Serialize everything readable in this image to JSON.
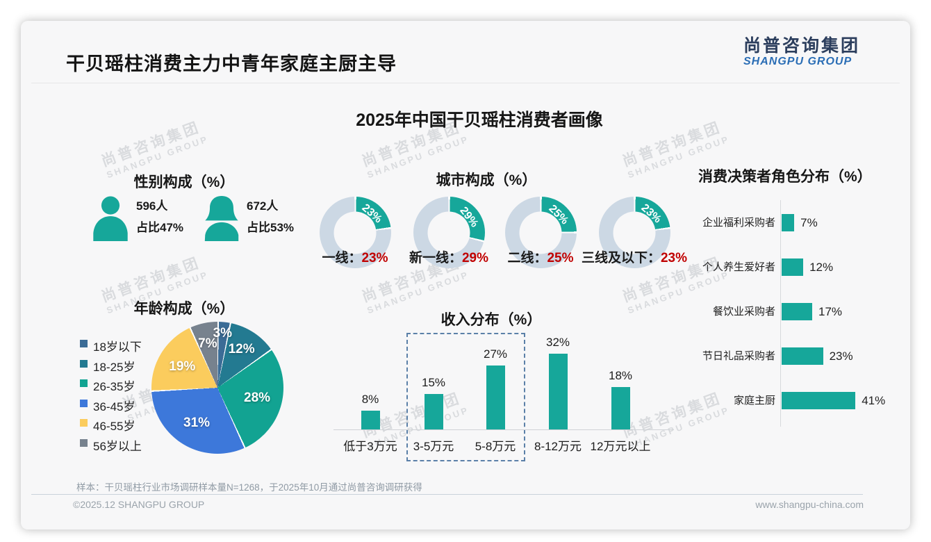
{
  "header": {
    "title": "干贝瑶柱消费主力中青年家庭主厨主导"
  },
  "logo": {
    "cn": "尚普咨询集团",
    "en": "SHANGPU GROUP"
  },
  "main_title": "2025年中国干贝瑶柱消费者画像",
  "watermark": {
    "cn": "尚普咨询集团",
    "en": "SHANGPU GROUP"
  },
  "colors": {
    "teal": "#16a79a",
    "donut_base": "#ccd8e4",
    "value_red": "#c00000",
    "logo_navy": "#2c3e5d",
    "logo_blue": "#2a6db5",
    "dashed_box": "#5b80a8",
    "pie": [
      "#3b6c96",
      "#237a91",
      "#12a392",
      "#3d78da",
      "#fbcc5d",
      "#77828e"
    ]
  },
  "gender": {
    "title": "性别构成（%）",
    "male": {
      "count": "596人",
      "share": "占比47%"
    },
    "female": {
      "count": "672人",
      "share": "占比53%"
    }
  },
  "city": {
    "title": "城市构成（%）",
    "items": [
      {
        "label": "一线：",
        "text": "23%",
        "pct": 23
      },
      {
        "label": "新一线：",
        "text": "29%",
        "pct": 29
      },
      {
        "label": "二线：",
        "text": "25%",
        "pct": 25
      },
      {
        "label": "三线及以下：",
        "text": "23%",
        "pct": 23
      }
    ]
  },
  "decision": {
    "title": "消费决策者角色分布（%）",
    "rows": [
      {
        "label": "企业福利采购者",
        "pct": 7,
        "text": "7%"
      },
      {
        "label": "个人养生爱好者",
        "pct": 12,
        "text": "12%"
      },
      {
        "label": "餐饮业采购者",
        "pct": 17,
        "text": "17%"
      },
      {
        "label": "节日礼品采购者",
        "pct": 23,
        "text": "23%"
      },
      {
        "label": "家庭主厨",
        "pct": 41,
        "text": "41%"
      }
    ]
  },
  "age": {
    "title": "年龄构成（%）",
    "slices": [
      {
        "label": "18岁以下",
        "pct": 3,
        "text": "3%",
        "color": "#3b6c96"
      },
      {
        "label": "18-25岁",
        "pct": 12,
        "text": "12%",
        "color": "#237a91"
      },
      {
        "label": "26-35岁",
        "pct": 28,
        "text": "28%",
        "color": "#12a392"
      },
      {
        "label": "36-45岁",
        "pct": 31,
        "text": "31%",
        "color": "#3d78da"
      },
      {
        "label": "46-55岁",
        "pct": 19,
        "text": "19%",
        "color": "#fbcc5d"
      },
      {
        "label": "56岁以上",
        "pct": 7,
        "text": "7%",
        "color": "#77828e"
      }
    ]
  },
  "income": {
    "title": "收入分布（%）",
    "bars": [
      {
        "label": "低于3万元",
        "pct": 8,
        "text": "8%"
      },
      {
        "label": "3-5万元",
        "pct": 15,
        "text": "15%"
      },
      {
        "label": "5-8万元",
        "pct": 27,
        "text": "27%"
      },
      {
        "label": "8-12万元",
        "pct": 32,
        "text": "32%"
      },
      {
        "label": "12万元以上",
        "pct": 18,
        "text": "18%"
      }
    ]
  },
  "footer": {
    "note": "样本：干贝瑶柱行业市场调研样本量N=1268，于2025年10月通过尚普咨询调研获得",
    "copyright": "©2025.12 SHANGPU GROUP",
    "website": "www.shangpu-china.com"
  },
  "chart_data": [
    {
      "type": "table",
      "title": "性别构成（%）",
      "categories": [
        "男",
        "女"
      ],
      "series": [
        {
          "name": "人数",
          "values": [
            596,
            672
          ]
        },
        {
          "name": "占比%",
          "values": [
            47,
            53
          ]
        }
      ]
    },
    {
      "type": "pie",
      "subtype": "donut-set",
      "title": "城市构成（%）",
      "categories": [
        "一线",
        "新一线",
        "二线",
        "三线及以下"
      ],
      "values": [
        23,
        29,
        25,
        23
      ]
    },
    {
      "type": "bar",
      "orientation": "horizontal",
      "title": "消费决策者角色分布（%）",
      "categories": [
        "企业福利采购者",
        "个人养生爱好者",
        "餐饮业采购者",
        "节日礼品采购者",
        "家庭主厨"
      ],
      "values": [
        7,
        12,
        17,
        23,
        41
      ],
      "xlim": [
        0,
        45
      ],
      "grid": false
    },
    {
      "type": "pie",
      "title": "年龄构成（%）",
      "categories": [
        "18岁以下",
        "18-25岁",
        "26-35岁",
        "36-45岁",
        "46-55岁",
        "56岁以上"
      ],
      "values": [
        3,
        12,
        28,
        31,
        19,
        7
      ],
      "legend_position": "left",
      "start_angle_deg": 0,
      "direction": "clockwise"
    },
    {
      "type": "bar",
      "title": "收入分布（%）",
      "categories": [
        "低于3万元",
        "3-5万元",
        "5-8万元",
        "8-12万元",
        "12万元以上"
      ],
      "values": [
        8,
        15,
        27,
        32,
        18
      ],
      "ylim": [
        0,
        35
      ],
      "grid": false,
      "annotation_box_categories": [
        "3-5万元",
        "5-8万元"
      ]
    }
  ]
}
